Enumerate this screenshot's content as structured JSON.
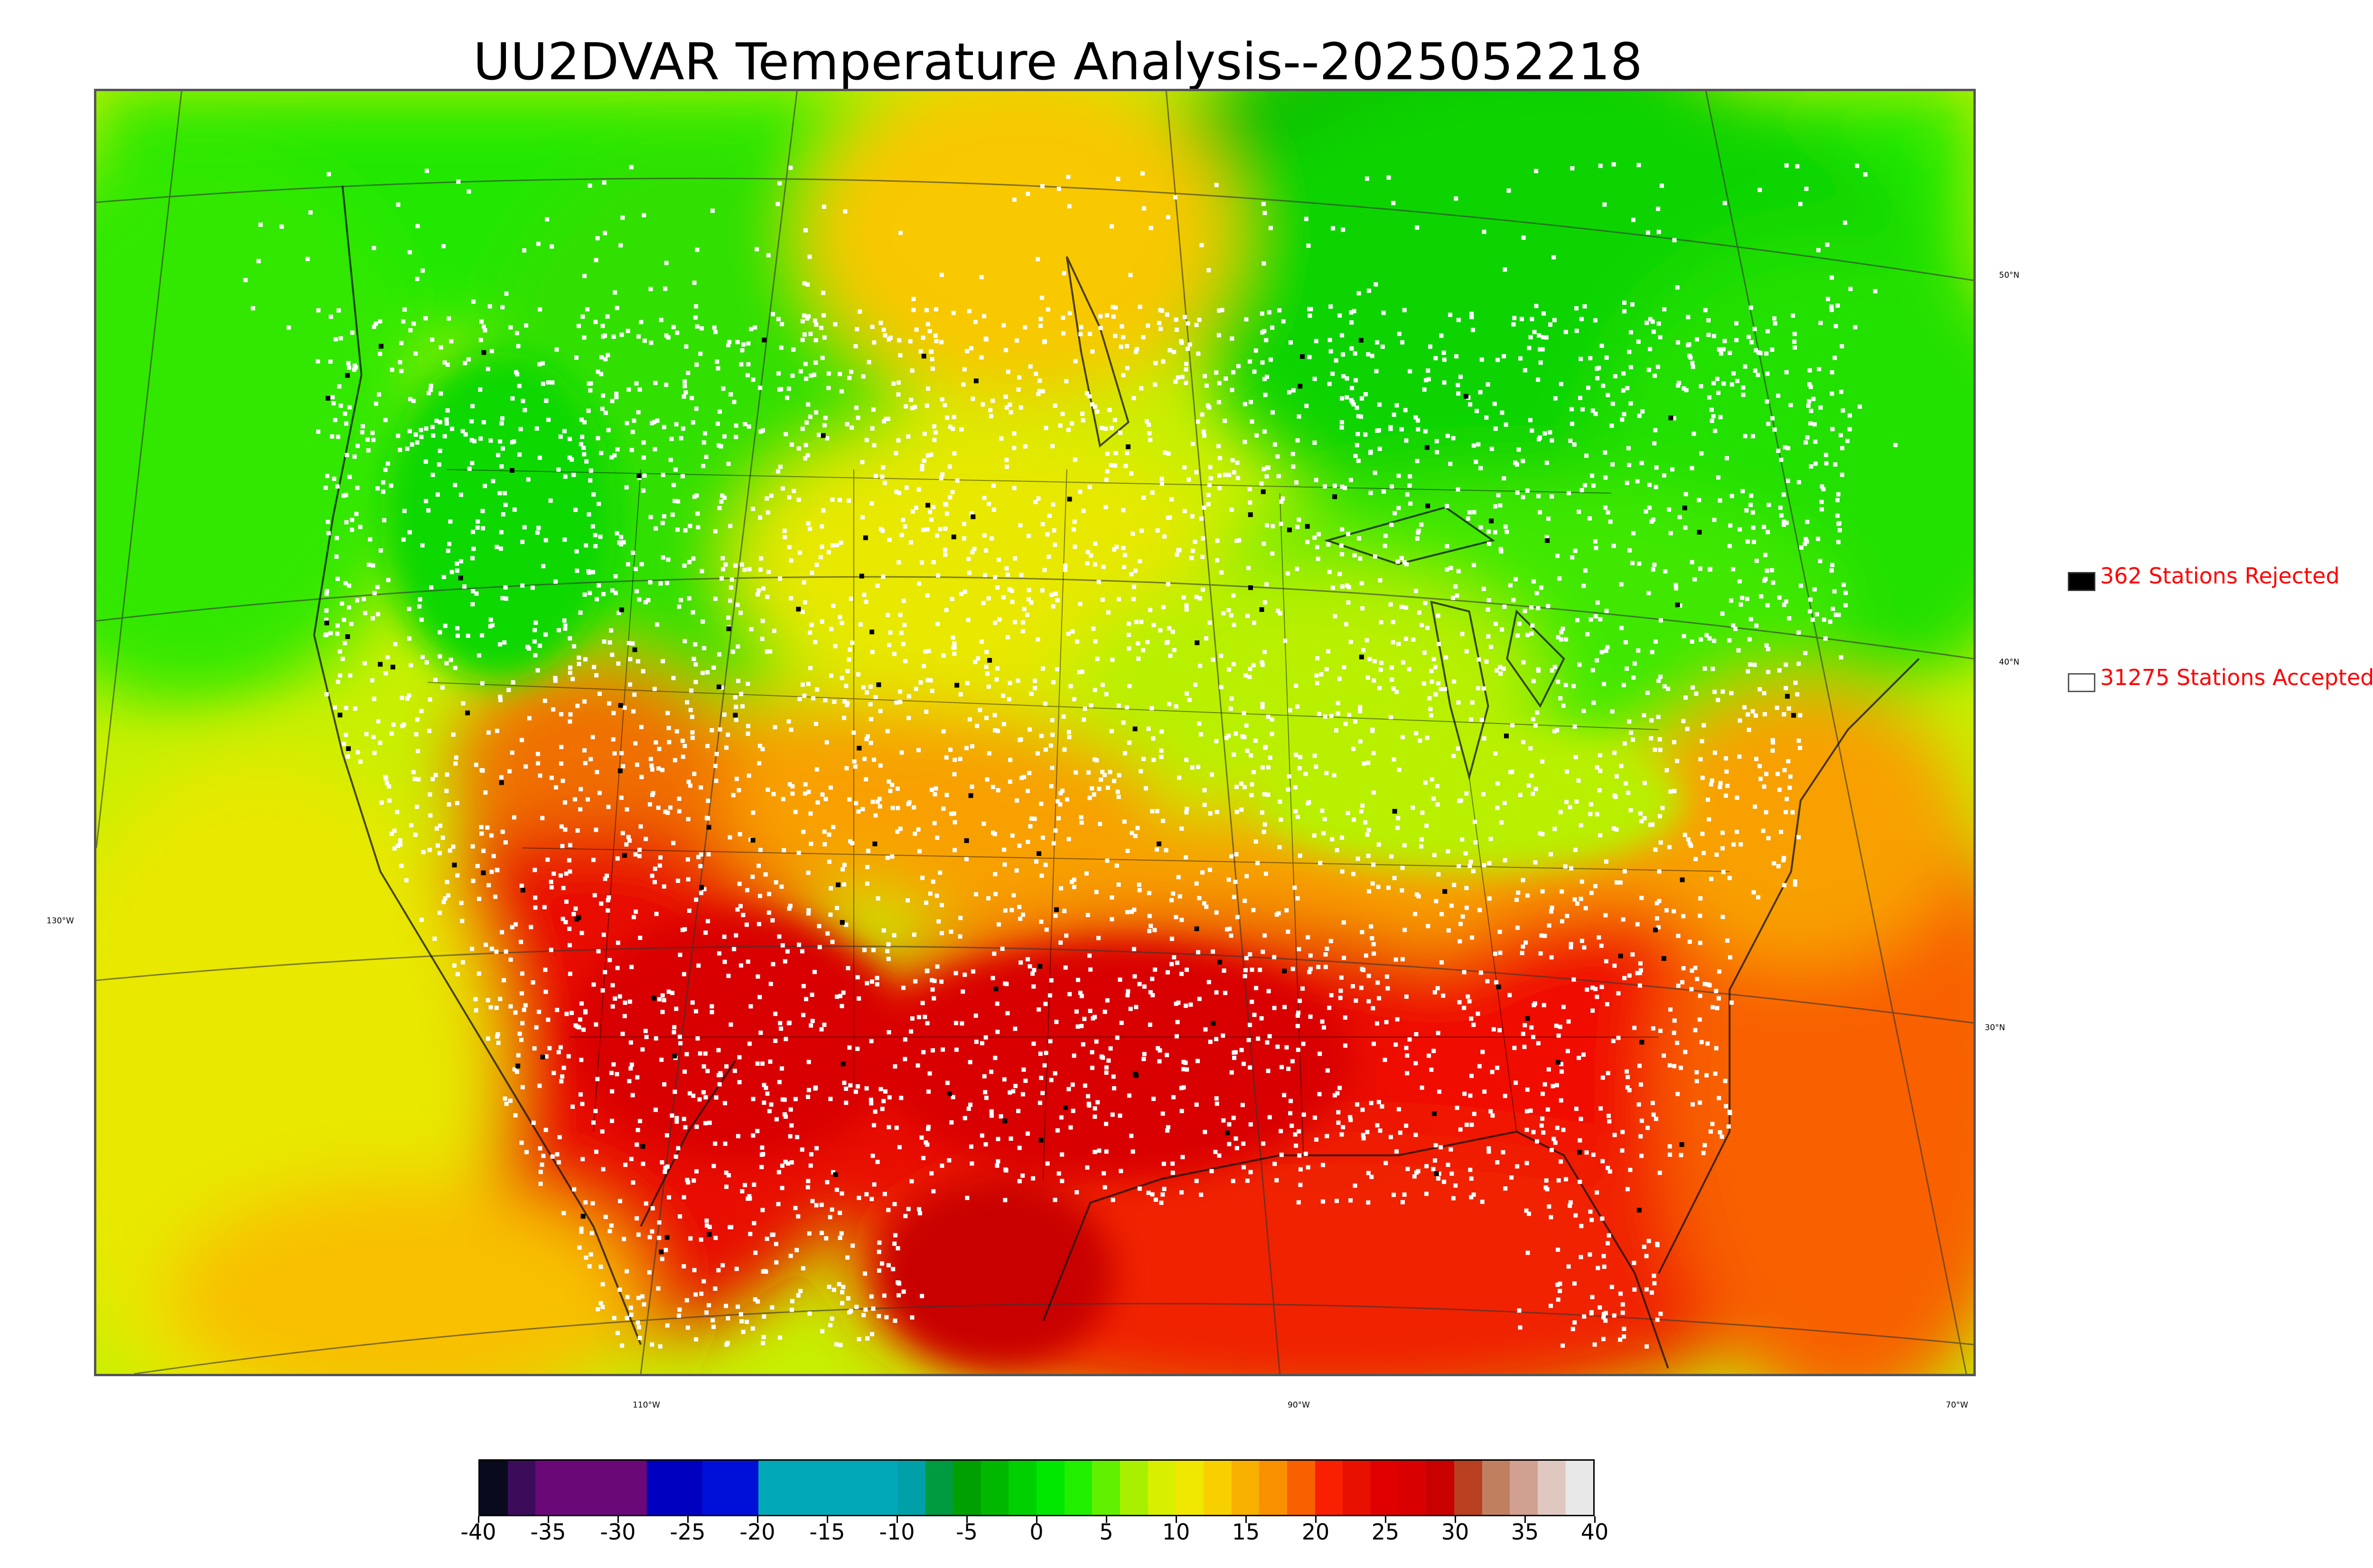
{
  "title": "UU2DVAR Temperature Analysis--2025052218",
  "map": {
    "lat_labels": [
      "50°N",
      "40°N",
      "30°N"
    ],
    "lon_labels": [
      "130°W",
      "110°W",
      "90°W",
      "70°W"
    ]
  },
  "legend": {
    "rejected": {
      "label": "362 Stations Rejected",
      "count": 362,
      "color": "#000000"
    },
    "accepted": {
      "label": "31275 Stations Accepted",
      "count": 31275,
      "color": "#ffffff"
    },
    "text_color": "#ff0000"
  },
  "colorbar": {
    "min": -40,
    "max": 40,
    "tick_labels": [
      "-40",
      "-35",
      "-30",
      "-25",
      "-20",
      "-15",
      "-10",
      "-5",
      "0",
      "5",
      "10",
      "15",
      "20",
      "25",
      "30",
      "35",
      "40"
    ],
    "colors": [
      "#0a0a1e",
      "#3a0c5a",
      "#6a0878",
      "#6a0878",
      "#6a0878",
      "#6a0878",
      "#0000c0",
      "#0000c0",
      "#0010d8",
      "#0010d8",
      "#00a8b8",
      "#00a8b8",
      "#00a8b8",
      "#00a8b8",
      "#00a8b8",
      "#00a0a8",
      "#009a40",
      "#00a000",
      "#00b800",
      "#00d000",
      "#00e800",
      "#20f000",
      "#60f000",
      "#a8f000",
      "#d8f000",
      "#f0e800",
      "#f8d000",
      "#f8b000",
      "#f89000",
      "#f86000",
      "#f82000",
      "#e81000",
      "#e00000",
      "#d80000",
      "#c80000",
      "#b84020",
      "#c08060",
      "#d0a090",
      "#e0c8c0",
      "#e8e8e8"
    ]
  }
}
